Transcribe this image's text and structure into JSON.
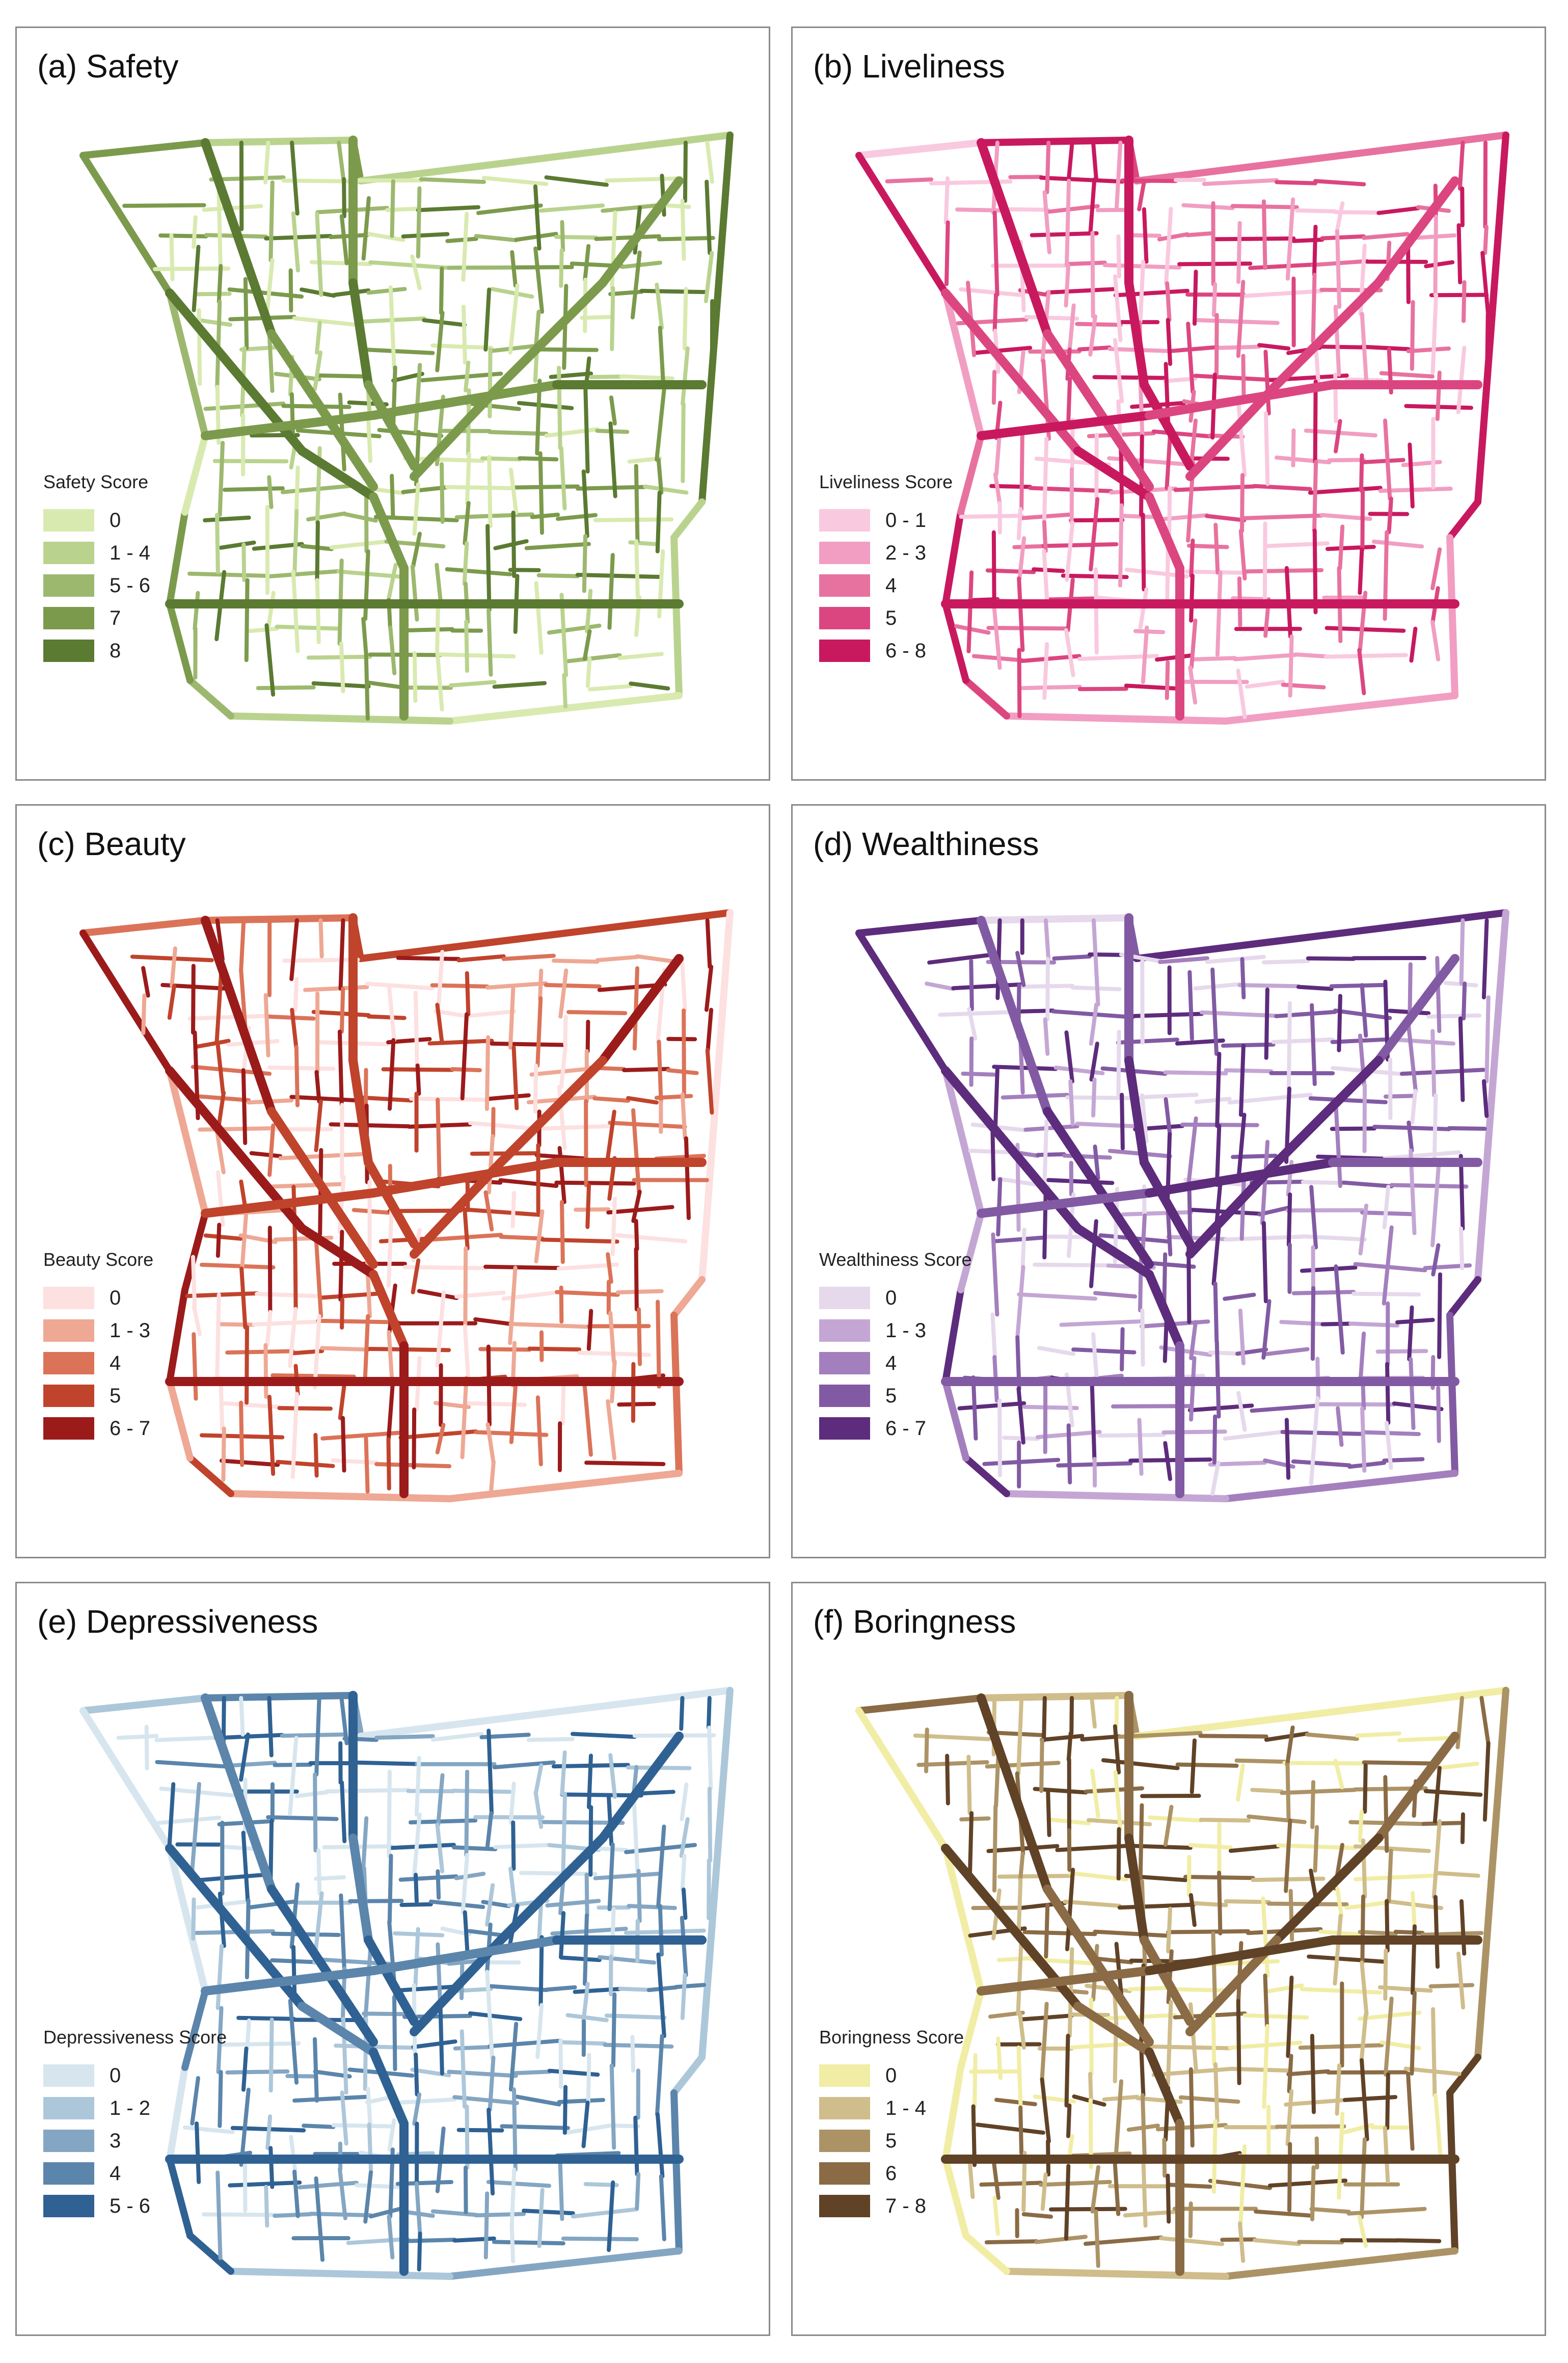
{
  "panels": [
    {
      "id": "safety",
      "title": "(a) Safety",
      "legend_title": "Safety Score",
      "classes": [
        {
          "label": "0",
          "color": "#d9eab0"
        },
        {
          "label": "1 - 4",
          "color": "#b9d38e"
        },
        {
          "label": "5 - 6",
          "color": "#9cb86e"
        },
        {
          "label": "7",
          "color": "#7c9a4c"
        },
        {
          "label": "8",
          "color": "#5b7a32"
        }
      ]
    },
    {
      "id": "liveliness",
      "title": "(b) Liveliness",
      "legend_title": "Liveliness Score",
      "classes": [
        {
          "label": "0 - 1",
          "color": "#f9c9df"
        },
        {
          "label": "2 - 3",
          "color": "#f19ec2"
        },
        {
          "label": "4",
          "color": "#e8729f"
        },
        {
          "label": "5",
          "color": "#dc4680"
        },
        {
          "label": "6 - 8",
          "color": "#c8195f"
        }
      ]
    },
    {
      "id": "beauty",
      "title": "(c) Beauty",
      "legend_title": "Beauty Score",
      "classes": [
        {
          "label": "0",
          "color": "#fde0e0"
        },
        {
          "label": "1 - 3",
          "color": "#eea894"
        },
        {
          "label": "4",
          "color": "#db7358"
        },
        {
          "label": "5",
          "color": "#c0432c"
        },
        {
          "label": "6 - 7",
          "color": "#9b1b1b"
        }
      ]
    },
    {
      "id": "wealthiness",
      "title": "(d) Wealthiness",
      "legend_title": "Wealthiness Score",
      "classes": [
        {
          "label": "0",
          "color": "#e6d9ec"
        },
        {
          "label": "1 - 3",
          "color": "#c4a6d4"
        },
        {
          "label": "4",
          "color": "#a47fbd"
        },
        {
          "label": "5",
          "color": "#825aa3"
        },
        {
          "label": "6 - 7",
          "color": "#5d2c7c"
        }
      ]
    },
    {
      "id": "depressiveness",
      "title": "(e) Depressiveness",
      "legend_title": "Depressiveness Score",
      "classes": [
        {
          "label": "0",
          "color": "#d7e6ee"
        },
        {
          "label": "1 - 2",
          "color": "#adc7da"
        },
        {
          "label": "3",
          "color": "#84a6c3"
        },
        {
          "label": "4",
          "color": "#5b85ab"
        },
        {
          "label": "5 - 6",
          "color": "#2f6193"
        }
      ]
    },
    {
      "id": "boringness",
      "title": "(f) Boringness",
      "legend_title": "Boringness Score",
      "classes": [
        {
          "label": "0",
          "color": "#f1eda5"
        },
        {
          "label": "1 - 4",
          "color": "#cfbd8b"
        },
        {
          "label": "5",
          "color": "#ac9366"
        },
        {
          "label": "6",
          "color": "#8a6b45"
        },
        {
          "label": "7 - 8",
          "color": "#604227"
        }
      ]
    }
  ]
}
